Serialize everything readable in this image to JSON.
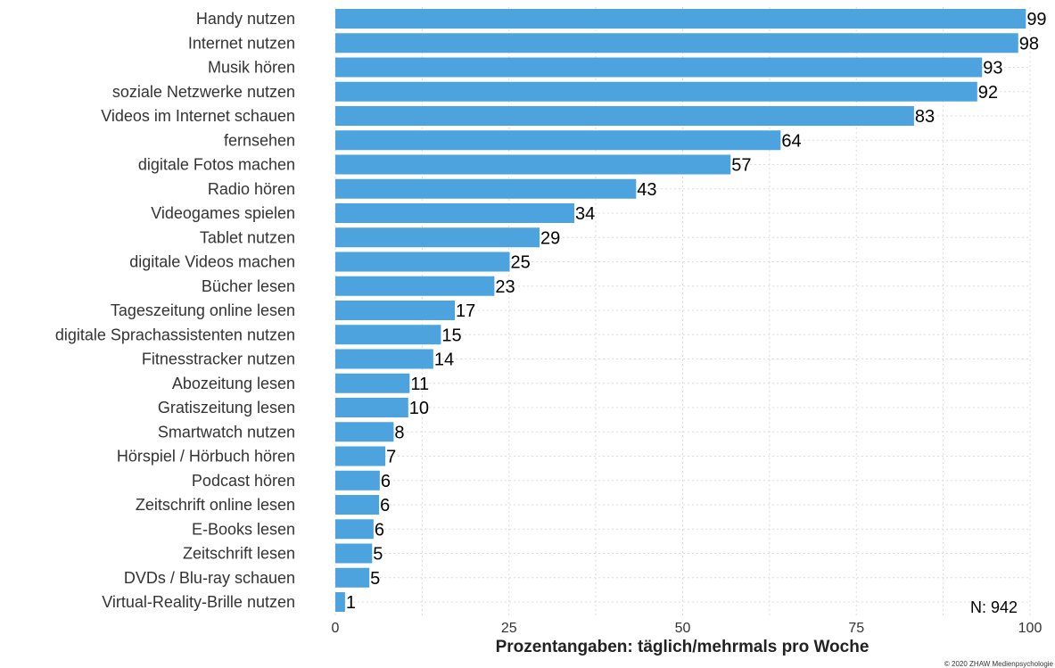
{
  "chart_data": {
    "type": "bar",
    "orientation": "horizontal",
    "categories": [
      "Handy nutzen",
      "Internet nutzen",
      "Musik hören",
      "soziale Netzwerke nutzen",
      "Videos im Internet schauen",
      "fernsehen",
      "digitale Fotos machen",
      "Radio hören",
      "Videogames spielen",
      "Tablet nutzen",
      "digitale Videos machen",
      "Bücher lesen",
      "Tageszeitung online lesen",
      "digitale Sprachassistenten nutzen",
      "Fitnesstracker nutzen",
      "Abozeitung lesen",
      "Gratiszeitung lesen",
      "Smartwatch nutzen",
      "Hörspiel / Hörbuch hören",
      "Podcast hören",
      "Zeitschrift online lesen",
      "E-Books lesen",
      "Zeitschrift lesen",
      "DVDs / Blu-ray schauen",
      "Virtual-Reality-Brille nutzen"
    ],
    "values": [
      99.4,
      98.3,
      93.1,
      92.4,
      83.3,
      64.1,
      56.9,
      43.3,
      34.4,
      29.4,
      25.1,
      22.9,
      17.2,
      15.2,
      14.1,
      10.7,
      10.5,
      8.4,
      7.2,
      6.4,
      6.3,
      5.5,
      5.3,
      4.9,
      1.4
    ],
    "value_labels": [
      "99",
      "98",
      "93",
      "92",
      "83",
      "64",
      "57",
      "43",
      "34",
      "29",
      "25",
      "23",
      "17",
      "15",
      "14",
      "11",
      "10",
      "8",
      "7",
      "6",
      "6",
      "6",
      "5",
      "5",
      "1"
    ],
    "xlabel": "Prozentangaben: täglich/mehrmals pro Woche",
    "ylabel": "",
    "xlim": [
      0,
      100
    ],
    "x_ticks": [
      0,
      25,
      50,
      75,
      100
    ],
    "grid": true,
    "bar_color": "#4ca3dd"
  },
  "annotations": {
    "sample_size": "N: 942",
    "copyright": "© 2020 ZHAW Medienpsychologie"
  }
}
